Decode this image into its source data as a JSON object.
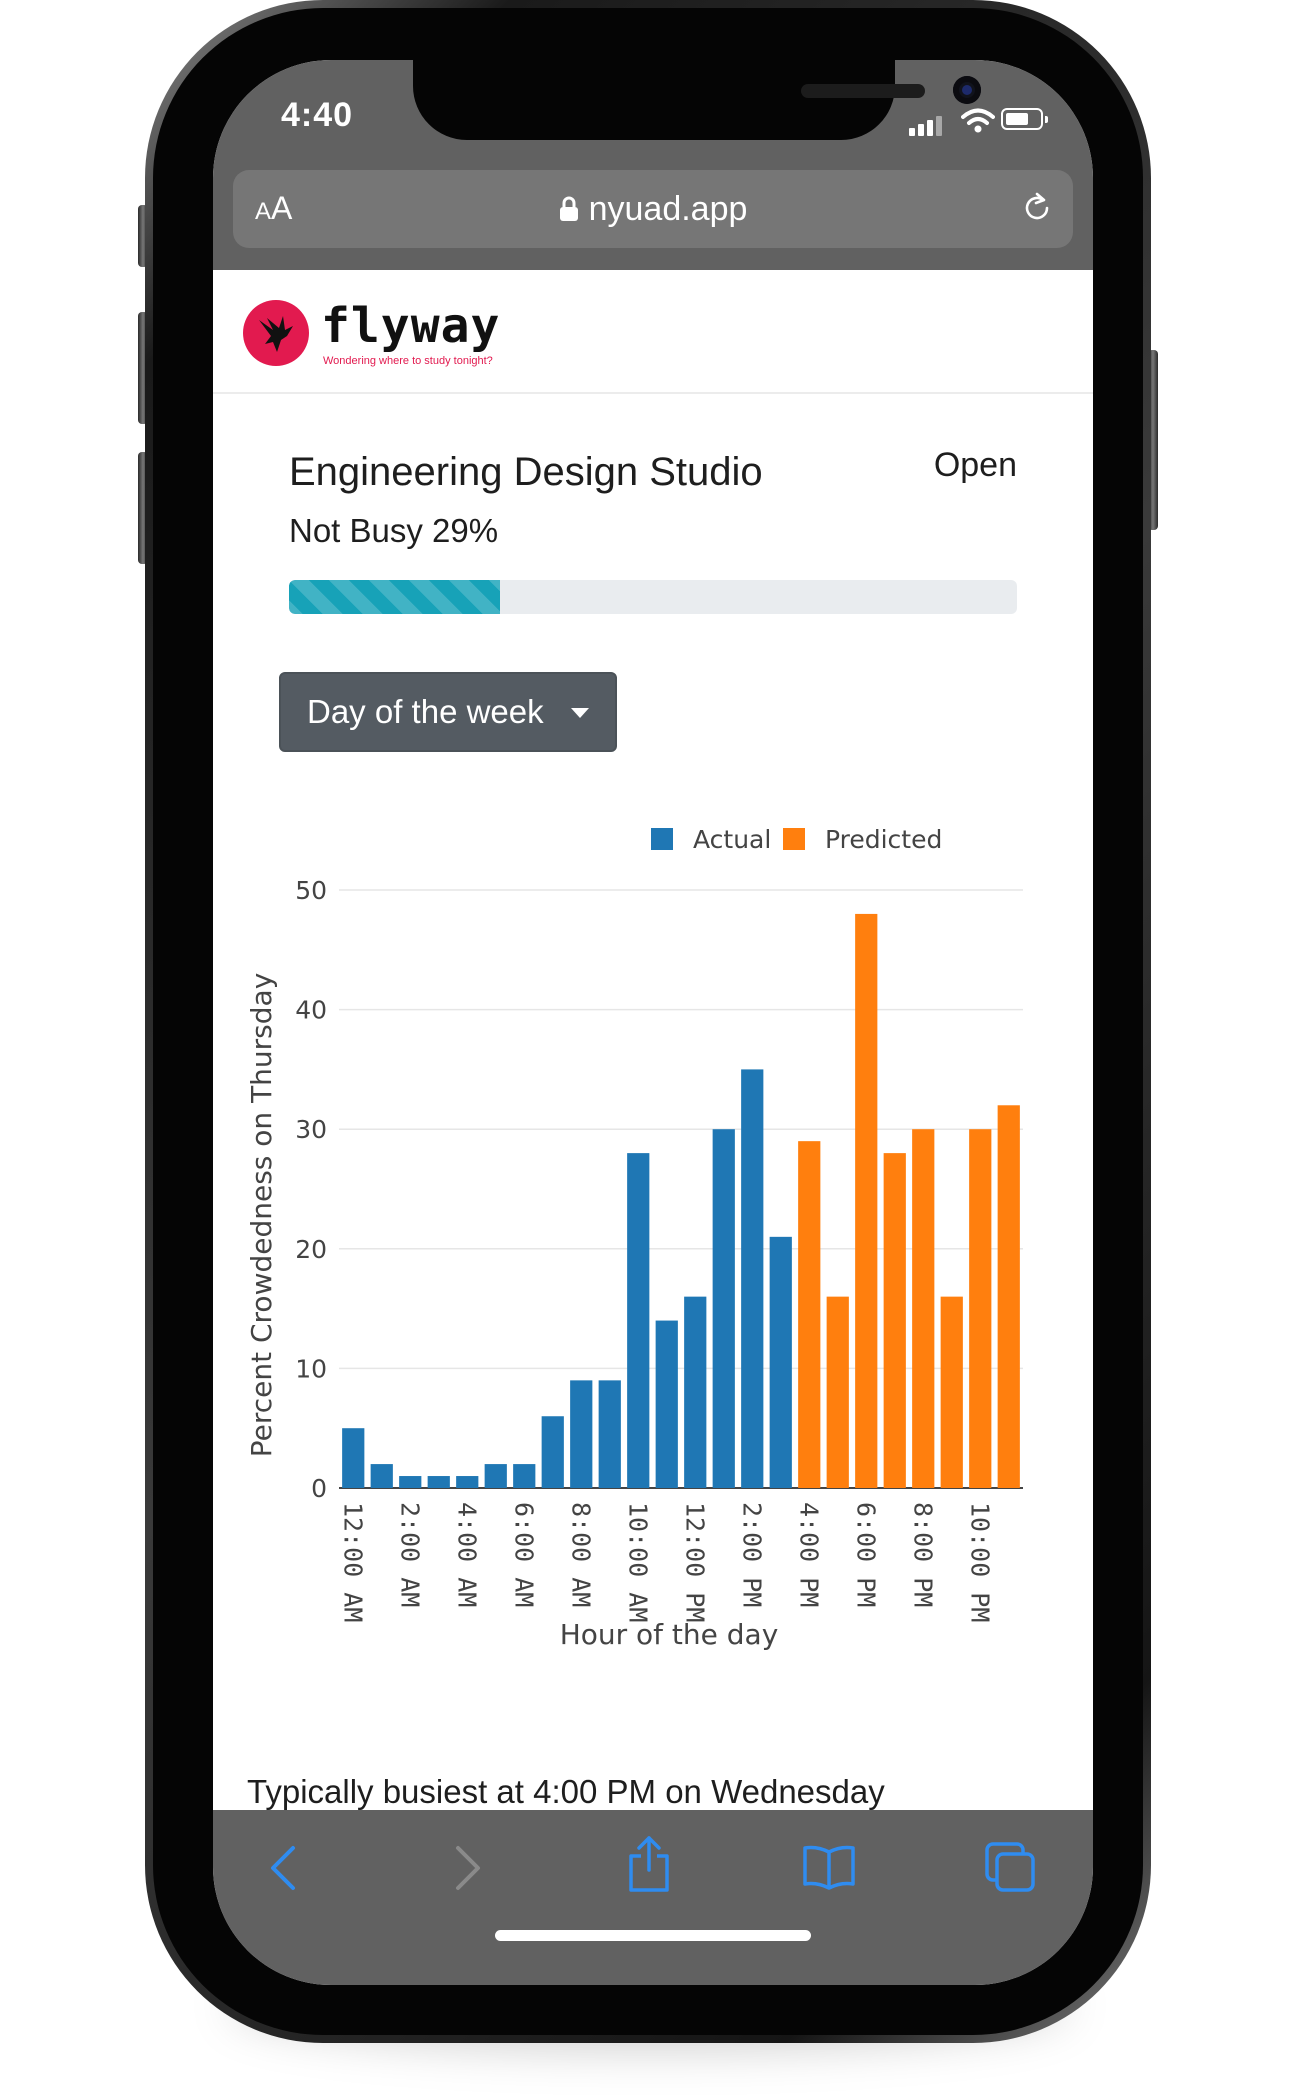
{
  "status_bar": {
    "time": "4:40"
  },
  "address_bar": {
    "text_size_label": "AA",
    "url": "nyuad.app"
  },
  "header": {
    "brand": "flyway",
    "tagline": "Wondering where to study tonight?"
  },
  "venue": {
    "name": "Engineering Design Studio",
    "status": "Open",
    "busy_label": "Not Busy 29%",
    "busy_percent": 29
  },
  "dropdown": {
    "label": "Day of the week"
  },
  "chart_data": {
    "type": "bar",
    "title": "",
    "xlabel": "Hour of the day",
    "ylabel": "Percent Crowdedness on Thursday",
    "ylim": [
      0,
      50
    ],
    "yticks": [
      0,
      10,
      20,
      30,
      40,
      50
    ],
    "legend_position": "top-right",
    "grid": true,
    "categories": [
      "12:00 AM",
      "1:00 AM",
      "2:00 AM",
      "3:00 AM",
      "4:00 AM",
      "5:00 AM",
      "6:00 AM",
      "7:00 AM",
      "8:00 AM",
      "9:00 AM",
      "10:00 AM",
      "11:00 AM",
      "12:00 PM",
      "1:00 PM",
      "2:00 PM",
      "3:00 PM",
      "4:00 PM",
      "5:00 PM",
      "6:00 PM",
      "7:00 PM",
      "8:00 PM",
      "9:00 PM",
      "10:00 PM",
      "11:00 PM"
    ],
    "tick_labels": [
      "12:00 AM",
      "2:00 AM",
      "4:00 AM",
      "6:00 AM",
      "8:00 AM",
      "10:00 AM",
      "12:00 PM",
      "2:00 PM",
      "4:00 PM",
      "6:00 PM",
      "8:00 PM",
      "10:00 PM"
    ],
    "series": [
      {
        "name": "Actual",
        "color": "#1f77b4",
        "values": [
          5,
          2,
          1,
          1,
          1,
          2,
          2,
          6,
          9,
          9,
          28,
          14,
          16,
          30,
          35,
          21,
          null,
          null,
          null,
          null,
          null,
          null,
          null,
          null
        ]
      },
      {
        "name": "Predicted",
        "color": "#ff7f0e",
        "values": [
          null,
          null,
          null,
          null,
          null,
          null,
          null,
          null,
          null,
          null,
          null,
          null,
          null,
          null,
          null,
          null,
          29,
          16,
          48,
          28,
          30,
          16,
          30,
          32
        ]
      }
    ]
  },
  "summary": "Typically busiest at 4:00 PM on Wednesday",
  "toolbar": {
    "icons": [
      "back-icon",
      "forward-icon",
      "share-icon",
      "bookmarks-icon",
      "tabs-icon"
    ]
  }
}
